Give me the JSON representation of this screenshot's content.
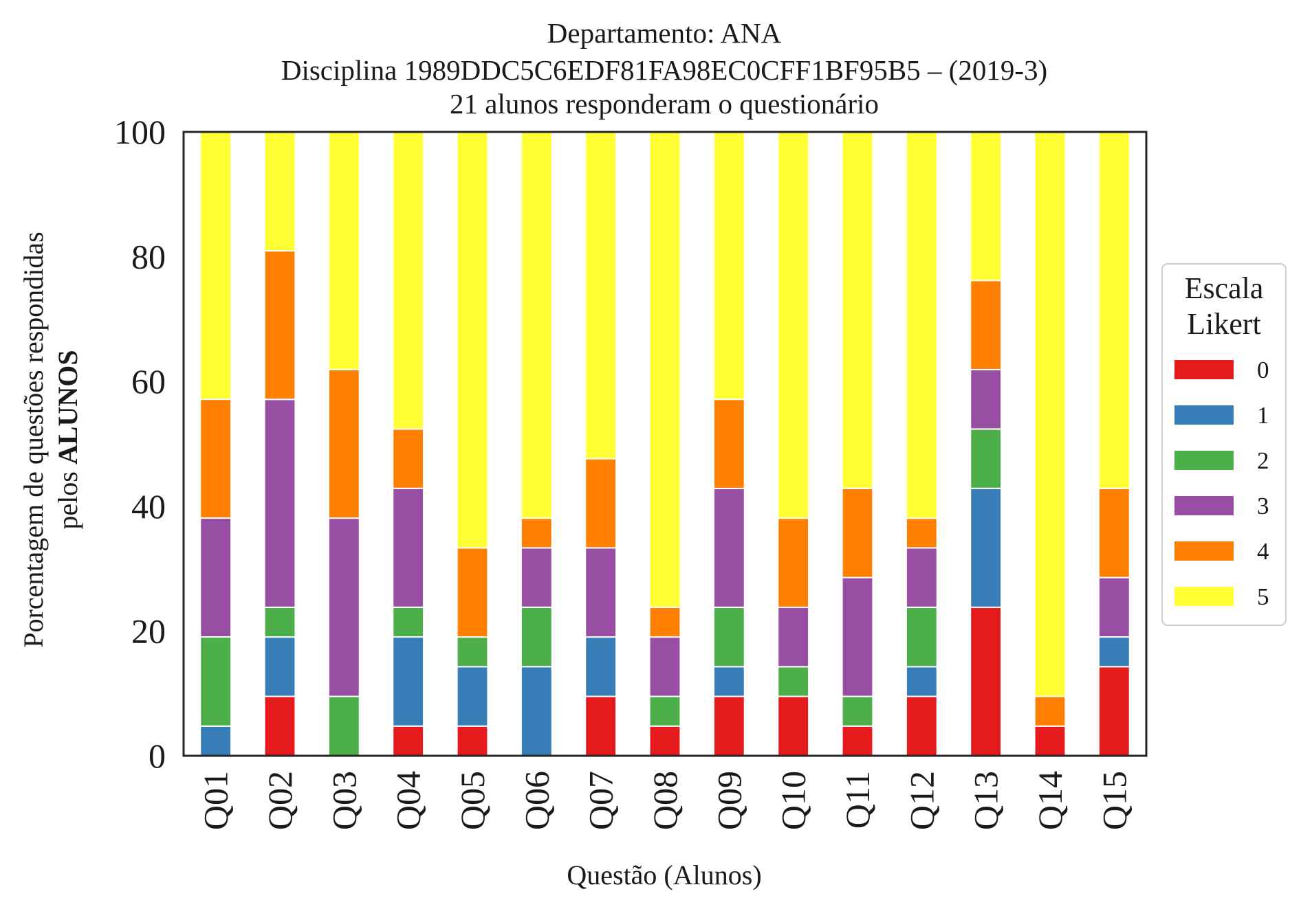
{
  "chart_data": {
    "type": "bar",
    "stacked": true,
    "title_lines": [
      "Departamento: ANA",
      "Disciplina 1989DDC5C6EDF81FA98EC0CFF1BF95B5 – (2019-3)",
      "21 alunos responderam o questionário"
    ],
    "xlabel": "Questão (Alunos)",
    "ylabel_line1": "Porcentagem de questões respondidas",
    "ylabel_line2_prefix": "pelos ",
    "ylabel_line2_bold": "ALUNOS",
    "ylim": [
      0,
      100
    ],
    "yticks": [
      "0",
      "20",
      "40",
      "60",
      "80",
      "100"
    ],
    "grid": false,
    "legend_position": "right",
    "legend_title_lines": [
      "Escala",
      "Likert"
    ],
    "categories": [
      "Q01",
      "Q02",
      "Q03",
      "Q04",
      "Q05",
      "Q06",
      "Q07",
      "Q08",
      "Q09",
      "Q10",
      "Q11",
      "Q12",
      "Q13",
      "Q14",
      "Q15"
    ],
    "series": [
      {
        "name": "0",
        "color": "#e41a1c",
        "values": [
          0,
          9.52,
          0,
          4.76,
          4.76,
          0,
          9.52,
          4.76,
          9.52,
          9.52,
          4.76,
          9.52,
          23.81,
          4.76,
          14.29
        ]
      },
      {
        "name": "1",
        "color": "#377eb8",
        "values": [
          4.76,
          9.52,
          0,
          14.29,
          9.52,
          14.29,
          9.52,
          0,
          4.76,
          0,
          0,
          4.76,
          19.05,
          0,
          4.76
        ]
      },
      {
        "name": "2",
        "color": "#4daf4a",
        "values": [
          14.29,
          4.76,
          9.52,
          4.76,
          4.76,
          9.52,
          0,
          4.76,
          9.52,
          4.76,
          4.76,
          9.52,
          9.52,
          0,
          0
        ]
      },
      {
        "name": "3",
        "color": "#984ea3",
        "values": [
          19.05,
          33.33,
          28.57,
          19.05,
          0,
          9.52,
          14.29,
          9.52,
          19.05,
          9.52,
          19.05,
          9.52,
          9.52,
          0,
          9.52
        ]
      },
      {
        "name": "4",
        "color": "#ff7f00",
        "values": [
          19.05,
          23.81,
          23.81,
          9.52,
          14.29,
          4.76,
          14.29,
          4.76,
          14.29,
          14.29,
          14.29,
          4.76,
          14.29,
          4.76,
          14.29
        ]
      },
      {
        "name": "5",
        "color": "#ffff33",
        "values": [
          42.86,
          19.05,
          38.1,
          47.62,
          66.67,
          61.9,
          52.38,
          76.19,
          42.86,
          61.9,
          57.14,
          61.9,
          23.81,
          90.48,
          57.14
        ]
      }
    ]
  }
}
